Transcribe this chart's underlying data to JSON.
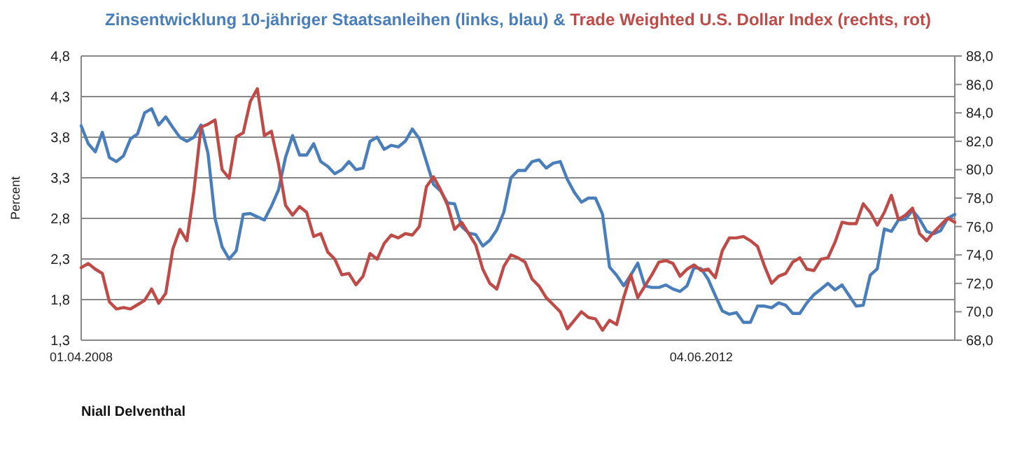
{
  "chart_data": {
    "type": "line",
    "title": "&",
    "ylabel": "Percent",
    "categories": [
      "01.04.2008",
      null,
      null,
      null,
      null,
      null,
      null,
      null,
      null,
      null,
      null,
      null,
      null,
      null,
      null,
      null,
      null,
      null,
      null,
      null,
      null,
      null,
      null,
      null,
      null,
      null,
      null,
      null,
      null,
      null,
      null,
      null,
      null,
      null,
      null,
      null,
      null,
      null,
      null,
      null,
      null,
      null,
      null,
      null,
      null,
      null,
      null,
      null,
      null,
      null,
      null,
      null,
      null,
      null,
      null,
      null,
      null,
      null,
      null,
      null,
      null,
      null,
      null,
      null,
      null,
      null,
      null,
      null,
      null,
      null,
      null,
      null,
      null,
      null,
      null,
      null,
      null,
      null,
      null,
      null,
      null,
      null,
      null,
      null,
      null,
      null,
      null,
      null,
      "04.06.2012",
      null,
      null,
      null,
      null,
      null,
      null,
      null,
      null,
      null,
      null,
      null,
      null,
      null,
      null,
      null,
      null,
      null,
      null,
      null,
      null,
      null,
      null,
      null,
      null,
      null,
      null,
      null,
      null,
      null,
      null,
      null,
      null,
      null,
      null,
      null,
      null
    ],
    "series": [
      {
        "name": "Zinsentwicklung 10-jähriger Staatsanleihen (links, blau)",
        "color": "#4a7ebb",
        "values": [
          3.94,
          3.72,
          3.62,
          3.86,
          3.55,
          3.5,
          3.57,
          3.78,
          3.84,
          4.1,
          4.15,
          3.95,
          4.05,
          3.92,
          3.8,
          3.75,
          3.8,
          3.95,
          3.6,
          2.8,
          2.45,
          2.3,
          2.4,
          2.85,
          2.86,
          2.82,
          2.78,
          2.95,
          3.15,
          3.55,
          3.82,
          3.58,
          3.58,
          3.72,
          3.5,
          3.44,
          3.35,
          3.4,
          3.5,
          3.4,
          3.42,
          3.75,
          3.8,
          3.65,
          3.7,
          3.68,
          3.75,
          3.9,
          3.78,
          3.5,
          3.22,
          3.14,
          2.99,
          2.98,
          2.7,
          2.62,
          2.6,
          2.46,
          2.53,
          2.66,
          2.88,
          3.3,
          3.39,
          3.39,
          3.5,
          3.52,
          3.42,
          3.48,
          3.5,
          3.28,
          3.12,
          3.0,
          3.05,
          3.05,
          2.85,
          2.2,
          2.1,
          1.97,
          2.1,
          2.25,
          1.97,
          1.95,
          1.95,
          1.98,
          1.93,
          1.9,
          1.97,
          2.2,
          2.18,
          2.05,
          1.85,
          1.66,
          1.62,
          1.64,
          1.52,
          1.52,
          1.72,
          1.72,
          1.7,
          1.76,
          1.73,
          1.63,
          1.63,
          1.76,
          1.86,
          1.93,
          2.0,
          1.92,
          1.98,
          1.85,
          1.72,
          1.73,
          2.1,
          2.18,
          2.67,
          2.64,
          2.78,
          2.79,
          2.9,
          2.79,
          2.64,
          2.61,
          2.65,
          2.8,
          2.85
        ]
      },
      {
        "name": "Trade Weighted U.S. Dollar Index (rechts, rot)",
        "color": "#be4b48",
        "axis": "y2",
        "values": [
          73.1,
          73.4,
          73.0,
          72.7,
          70.7,
          70.2,
          70.3,
          70.2,
          70.5,
          70.8,
          71.6,
          70.6,
          71.3,
          74.4,
          75.8,
          75.0,
          78.5,
          83.0,
          83.2,
          83.5,
          80.0,
          79.4,
          82.3,
          82.6,
          84.8,
          85.7,
          82.4,
          82.7,
          80.4,
          77.5,
          76.8,
          77.4,
          77.0,
          75.3,
          75.5,
          74.2,
          73.7,
          72.6,
          72.7,
          71.9,
          72.5,
          74.1,
          73.7,
          74.8,
          75.4,
          75.2,
          75.5,
          75.4,
          76.0,
          78.8,
          79.5,
          78.6,
          77.5,
          75.8,
          76.3,
          75.5,
          74.7,
          73.0,
          72.0,
          71.6,
          73.2,
          74.0,
          73.8,
          73.5,
          72.3,
          71.8,
          71.0,
          70.5,
          70.0,
          68.8,
          69.4,
          70.0,
          69.6,
          69.5,
          68.7,
          69.4,
          69.1,
          71.0,
          72.6,
          71.0,
          71.8,
          72.6,
          73.5,
          73.6,
          73.4,
          72.5,
          73.0,
          73.3,
          72.9,
          73.0,
          72.4,
          74.3,
          75.2,
          75.2,
          75.3,
          75.0,
          74.6,
          73.2,
          72.0,
          72.5,
          72.7,
          73.5,
          73.8,
          73.0,
          72.9,
          73.7,
          73.8,
          74.9,
          76.3,
          76.2,
          76.2,
          77.6,
          77.0,
          76.1,
          77.0,
          78.2,
          76.5,
          76.8,
          77.3,
          75.5,
          75.0,
          75.6,
          76.1,
          76.6,
          76.3
        ]
      }
    ],
    "ylim": [
      1.3,
      4.8
    ],
    "yticks": [
      {
        "value": 1.3,
        "label": "1,3"
      },
      {
        "value": 1.8,
        "label": "1,8"
      },
      {
        "value": 2.3,
        "label": "2,3"
      },
      {
        "value": 2.8,
        "label": "2,8"
      },
      {
        "value": 3.3,
        "label": "3,3"
      },
      {
        "value": 3.8,
        "label": "3,8"
      },
      {
        "value": 4.3,
        "label": "4,3"
      },
      {
        "value": 4.8,
        "label": "4,8"
      }
    ],
    "y2lim": [
      68,
      88
    ],
    "y2ticks": [
      {
        "value": 68,
        "label": "68,0"
      },
      {
        "value": 70,
        "label": "70,0"
      },
      {
        "value": 72,
        "label": "72,0"
      },
      {
        "value": 74,
        "label": "74,0"
      },
      {
        "value": 76,
        "label": "76,0"
      },
      {
        "value": 78,
        "label": "78,0"
      },
      {
        "value": 80,
        "label": "80,0"
      },
      {
        "value": 82,
        "label": "82,0"
      },
      {
        "value": 84,
        "label": "84,0"
      },
      {
        "value": 86,
        "label": "86,0"
      },
      {
        "value": 88,
        "label": "88,0"
      }
    ],
    "grid": "y",
    "legend": "top",
    "marker": "none",
    "line_style": "solid",
    "annotations": [
      "Niall Delventhal"
    ]
  }
}
